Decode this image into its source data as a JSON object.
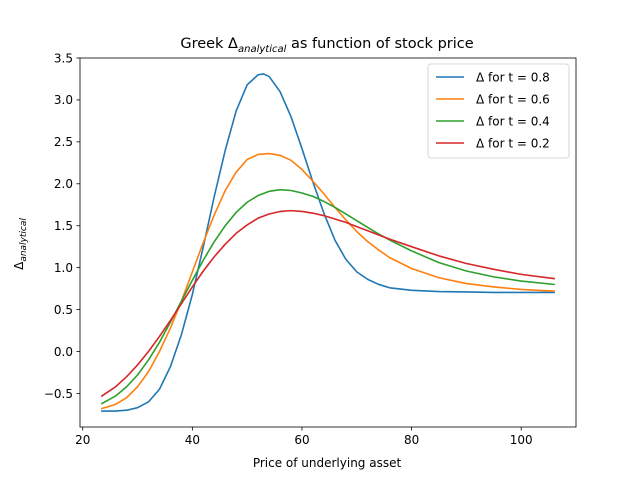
{
  "chart_data": {
    "type": "line",
    "title": {
      "prefix": "Greek Δ",
      "subscript": "analytical",
      "suffix": " as function of stock price"
    },
    "xlabel": "Price of underlying asset",
    "ylabel": {
      "main": "Δ",
      "subscript": "analytical"
    },
    "xlim": [
      19.5,
      110
    ],
    "ylim": [
      -0.9,
      3.5
    ],
    "xticks": [
      20,
      40,
      60,
      80,
      100
    ],
    "yticks": [
      -0.5,
      0.0,
      0.5,
      1.0,
      1.5,
      2.0,
      2.5,
      3.0,
      3.5
    ],
    "ytick_labels": [
      "−0.5",
      "0.0",
      "0.5",
      "1.0",
      "1.5",
      "2.0",
      "2.5",
      "3.0",
      "3.5"
    ],
    "grid": false,
    "legend_position": "top-right",
    "series": [
      {
        "name": "Δ for t = 0.8",
        "color": "#1f77b4",
        "points": [
          [
            23.5,
            -0.71
          ],
          [
            26,
            -0.71
          ],
          [
            28,
            -0.7
          ],
          [
            30,
            -0.67
          ],
          [
            32,
            -0.6
          ],
          [
            34,
            -0.45
          ],
          [
            36,
            -0.18
          ],
          [
            38,
            0.2
          ],
          [
            40,
            0.68
          ],
          [
            42,
            1.25
          ],
          [
            44,
            1.85
          ],
          [
            46,
            2.4
          ],
          [
            48,
            2.87
          ],
          [
            50,
            3.18
          ],
          [
            52,
            3.3
          ],
          [
            53,
            3.31
          ],
          [
            54,
            3.28
          ],
          [
            56,
            3.1
          ],
          [
            58,
            2.8
          ],
          [
            60,
            2.42
          ],
          [
            62,
            2.02
          ],
          [
            64,
            1.65
          ],
          [
            66,
            1.33
          ],
          [
            68,
            1.1
          ],
          [
            70,
            0.95
          ],
          [
            72,
            0.86
          ],
          [
            74,
            0.8
          ],
          [
            76,
            0.76
          ],
          [
            80,
            0.73
          ],
          [
            85,
            0.715
          ],
          [
            90,
            0.71
          ],
          [
            95,
            0.705
          ],
          [
            100,
            0.705
          ],
          [
            106,
            0.705
          ]
        ]
      },
      {
        "name": "Δ for t = 0.6",
        "color": "#ff7f0e",
        "points": [
          [
            23.5,
            -0.68
          ],
          [
            26,
            -0.63
          ],
          [
            28,
            -0.55
          ],
          [
            30,
            -0.42
          ],
          [
            32,
            -0.24
          ],
          [
            34,
            0.0
          ],
          [
            36,
            0.28
          ],
          [
            38,
            0.6
          ],
          [
            40,
            0.95
          ],
          [
            42,
            1.3
          ],
          [
            44,
            1.63
          ],
          [
            46,
            1.92
          ],
          [
            48,
            2.14
          ],
          [
            50,
            2.29
          ],
          [
            52,
            2.35
          ],
          [
            54,
            2.36
          ],
          [
            56,
            2.34
          ],
          [
            58,
            2.28
          ],
          [
            60,
            2.17
          ],
          [
            62,
            2.03
          ],
          [
            64,
            1.88
          ],
          [
            66,
            1.72
          ],
          [
            68,
            1.57
          ],
          [
            70,
            1.43
          ],
          [
            72,
            1.31
          ],
          [
            74,
            1.21
          ],
          [
            76,
            1.12
          ],
          [
            80,
            0.99
          ],
          [
            85,
            0.88
          ],
          [
            90,
            0.81
          ],
          [
            95,
            0.77
          ],
          [
            100,
            0.74
          ],
          [
            106,
            0.72
          ]
        ]
      },
      {
        "name": "Δ for t = 0.4",
        "color": "#2ca02c",
        "points": [
          [
            23.5,
            -0.62
          ],
          [
            26,
            -0.53
          ],
          [
            28,
            -0.42
          ],
          [
            30,
            -0.28
          ],
          [
            32,
            -0.1
          ],
          [
            34,
            0.11
          ],
          [
            36,
            0.35
          ],
          [
            38,
            0.6
          ],
          [
            40,
            0.85
          ],
          [
            42,
            1.09
          ],
          [
            44,
            1.31
          ],
          [
            46,
            1.5
          ],
          [
            48,
            1.66
          ],
          [
            50,
            1.78
          ],
          [
            52,
            1.86
          ],
          [
            54,
            1.91
          ],
          [
            56,
            1.93
          ],
          [
            58,
            1.92
          ],
          [
            60,
            1.89
          ],
          [
            62,
            1.85
          ],
          [
            64,
            1.79
          ],
          [
            66,
            1.72
          ],
          [
            68,
            1.64
          ],
          [
            70,
            1.56
          ],
          [
            72,
            1.48
          ],
          [
            74,
            1.4
          ],
          [
            76,
            1.33
          ],
          [
            80,
            1.2
          ],
          [
            85,
            1.06
          ],
          [
            90,
            0.96
          ],
          [
            95,
            0.89
          ],
          [
            100,
            0.84
          ],
          [
            106,
            0.8
          ]
        ]
      },
      {
        "name": "Δ for t = 0.2",
        "color": "#d62728",
        "points": [
          [
            23.5,
            -0.53
          ],
          [
            26,
            -0.42
          ],
          [
            28,
            -0.3
          ],
          [
            30,
            -0.16
          ],
          [
            32,
            0.0
          ],
          [
            34,
            0.18
          ],
          [
            36,
            0.37
          ],
          [
            38,
            0.57
          ],
          [
            40,
            0.77
          ],
          [
            42,
            0.96
          ],
          [
            44,
            1.13
          ],
          [
            46,
            1.28
          ],
          [
            48,
            1.41
          ],
          [
            50,
            1.51
          ],
          [
            52,
            1.59
          ],
          [
            54,
            1.64
          ],
          [
            56,
            1.67
          ],
          [
            58,
            1.68
          ],
          [
            60,
            1.67
          ],
          [
            62,
            1.65
          ],
          [
            64,
            1.62
          ],
          [
            66,
            1.58
          ],
          [
            68,
            1.54
          ],
          [
            70,
            1.49
          ],
          [
            72,
            1.44
          ],
          [
            74,
            1.39
          ],
          [
            76,
            1.34
          ],
          [
            80,
            1.25
          ],
          [
            85,
            1.14
          ],
          [
            90,
            1.05
          ],
          [
            95,
            0.98
          ],
          [
            100,
            0.92
          ],
          [
            106,
            0.87
          ]
        ]
      }
    ]
  }
}
